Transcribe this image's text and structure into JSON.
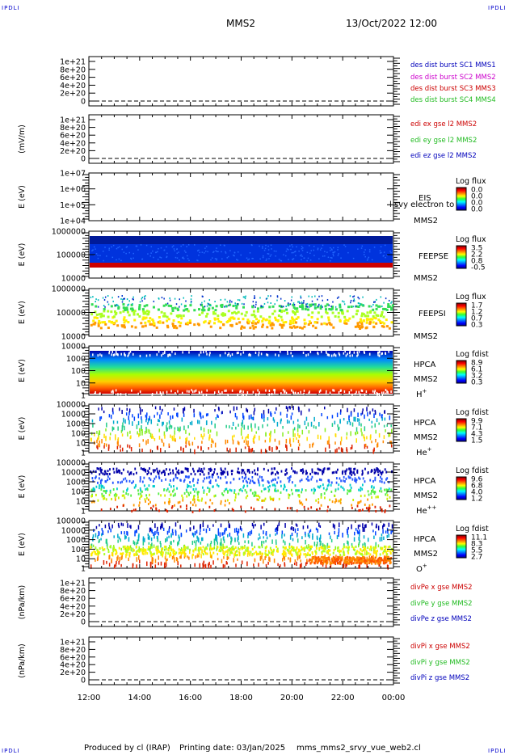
{
  "header": {
    "corner_tl": "IPDLI",
    "corner_tr": "IPDLI",
    "corner_bl": "IPDLI",
    "corner_br": "IPDLI",
    "spacecraft": "MMS2",
    "datetime": "13/Oct/2022 12:00"
  },
  "footer": {
    "producer": "Produced by cl (IRAP)",
    "printing": "Printing date: 03/Jan/2025",
    "filename": "mms_mms2_srvy_vue_web2.cl"
  },
  "colors": {
    "mms1": "#0000bb",
    "mms2": "#cc00cc",
    "mms3": "#cc0000",
    "mms4": "#22bb22",
    "x_comp": "#cc0000",
    "y_comp": "#22bb22",
    "z_comp": "#0000bb"
  },
  "chart_data": [
    {
      "id": "dist",
      "type": "line",
      "ylabel": "",
      "yticks": [
        "1e+21",
        "8e+20",
        "6e+20",
        "4e+20",
        "2e+20",
        "0"
      ],
      "series": [
        {
          "name": "des dist burst SC1 MMS1",
          "color": "#0000bb",
          "values": []
        },
        {
          "name": "des dist burst SC2 MMS2",
          "color": "#cc00cc",
          "values": []
        },
        {
          "name": "des dist burst SC3 MMS3",
          "color": "#cc0000",
          "values": []
        },
        {
          "name": "des dist burst SC4 MMS4",
          "color": "#22bb22",
          "values": []
        }
      ]
    },
    {
      "id": "edi",
      "type": "line",
      "ylabel": "(mV/m)",
      "yticks": [
        "1e+21",
        "8e+20",
        "6e+20",
        "4e+20",
        "2e+20",
        "0"
      ],
      "series": [
        {
          "name": "edi ex gse l2 MMS2",
          "color": "#cc0000",
          "values": []
        },
        {
          "name": "edi ey gse l2 MMS2",
          "color": "#22bb22",
          "values": []
        },
        {
          "name": "edi ez gse l2 MMS2",
          "color": "#0000bb",
          "values": []
        }
      ]
    },
    {
      "id": "eis",
      "type": "heatmap",
      "ylabel": "E (eV)",
      "yticks": [
        "1e+07",
        "1e+06",
        "1e+05",
        "1e+04"
      ],
      "labels": [
        "EIS",
        "MMS2"
      ],
      "overlay": "l svy electron to",
      "cbar_title": "Log flux",
      "cbar_ticks": [
        "0.0",
        "0.0",
        "0.0",
        "0.0"
      ]
    },
    {
      "id": "feepse",
      "type": "heatmap",
      "ylabel": "E (eV)",
      "yticks": [
        "1000000",
        "100000",
        "10000"
      ],
      "labels": [
        "FEEPSE",
        "MMS2"
      ],
      "cbar_title": "Log flux",
      "cbar_ticks": [
        "3.5",
        "2.2",
        "0.8",
        "-0.5"
      ]
    },
    {
      "id": "feepsi",
      "type": "heatmap",
      "ylabel": "E (eV)",
      "yticks": [
        "1000000",
        "100000",
        "10000"
      ],
      "labels": [
        "FEEPSI",
        "MMS2"
      ],
      "cbar_title": "Log flux",
      "cbar_ticks": [
        "1.7",
        "1.2",
        "0.7",
        "0.3"
      ]
    },
    {
      "id": "hpca_h",
      "type": "heatmap",
      "ylabel": "E (eV)",
      "yticks": [
        "10000",
        "1000",
        "100",
        "10",
        "1"
      ],
      "labels": [
        "HPCA",
        "MMS2"
      ],
      "species": "H",
      "species_sup": "+",
      "cbar_title": "Log fdist",
      "cbar_ticks": [
        "8.9",
        "6.1",
        "3.2",
        "0.3"
      ]
    },
    {
      "id": "hpca_he",
      "type": "heatmap",
      "ylabel": "E (eV)",
      "yticks": [
        "100000",
        "10000",
        "1000",
        "100",
        "10",
        "1"
      ],
      "labels": [
        "HPCA",
        "MMS2"
      ],
      "species": "He",
      "species_sup": "+",
      "cbar_title": "Log fdist",
      "cbar_ticks": [
        "9.9",
        "7.1",
        "4.3",
        "1.5"
      ]
    },
    {
      "id": "hpca_hepp",
      "type": "heatmap",
      "ylabel": "E (eV)",
      "yticks": [
        "100000",
        "10000",
        "1000",
        "100",
        "10",
        "1"
      ],
      "labels": [
        "HPCA",
        "MMS2"
      ],
      "species": "He",
      "species_sup": "++",
      "cbar_title": "Log fdist",
      "cbar_ticks": [
        "9.6",
        "6.8",
        "4.0",
        "1.2"
      ]
    },
    {
      "id": "hpca_o",
      "type": "heatmap",
      "ylabel": "E (eV)",
      "yticks": [
        "100000",
        "10000",
        "1000",
        "100",
        "10",
        "1"
      ],
      "labels": [
        "HPCA",
        "MMS2"
      ],
      "species": "O",
      "species_sup": "+",
      "cbar_title": "Log fdist",
      "cbar_ticks": [
        "11.1",
        "8.3",
        "5.5",
        "2.7"
      ]
    },
    {
      "id": "divpe",
      "type": "line",
      "ylabel": "(nPa/km)",
      "yticks": [
        "1e+21",
        "8e+20",
        "6e+20",
        "4e+20",
        "2e+20",
        "0"
      ],
      "series": [
        {
          "name": "divPe x gse MMS2",
          "color": "#cc0000",
          "values": []
        },
        {
          "name": "divPe y gse MMS2",
          "color": "#22bb22",
          "values": []
        },
        {
          "name": "divPe z gse MMS2",
          "color": "#0000bb",
          "values": []
        }
      ]
    },
    {
      "id": "divpi",
      "type": "line",
      "ylabel": "(nPa/km)",
      "yticks": [
        "1e+21",
        "8e+20",
        "6e+20",
        "4e+20",
        "2e+20",
        "0"
      ],
      "series": [
        {
          "name": "divPi x gse MMS2",
          "color": "#cc0000",
          "values": []
        },
        {
          "name": "divPi y gse MMS2",
          "color": "#22bb22",
          "values": []
        },
        {
          "name": "divPi z gse MMS2",
          "color": "#0000bb",
          "values": []
        }
      ]
    }
  ],
  "xaxis": {
    "ticks": [
      "12:00",
      "14:00",
      "16:00",
      "18:00",
      "20:00",
      "22:00",
      "00:00"
    ]
  }
}
